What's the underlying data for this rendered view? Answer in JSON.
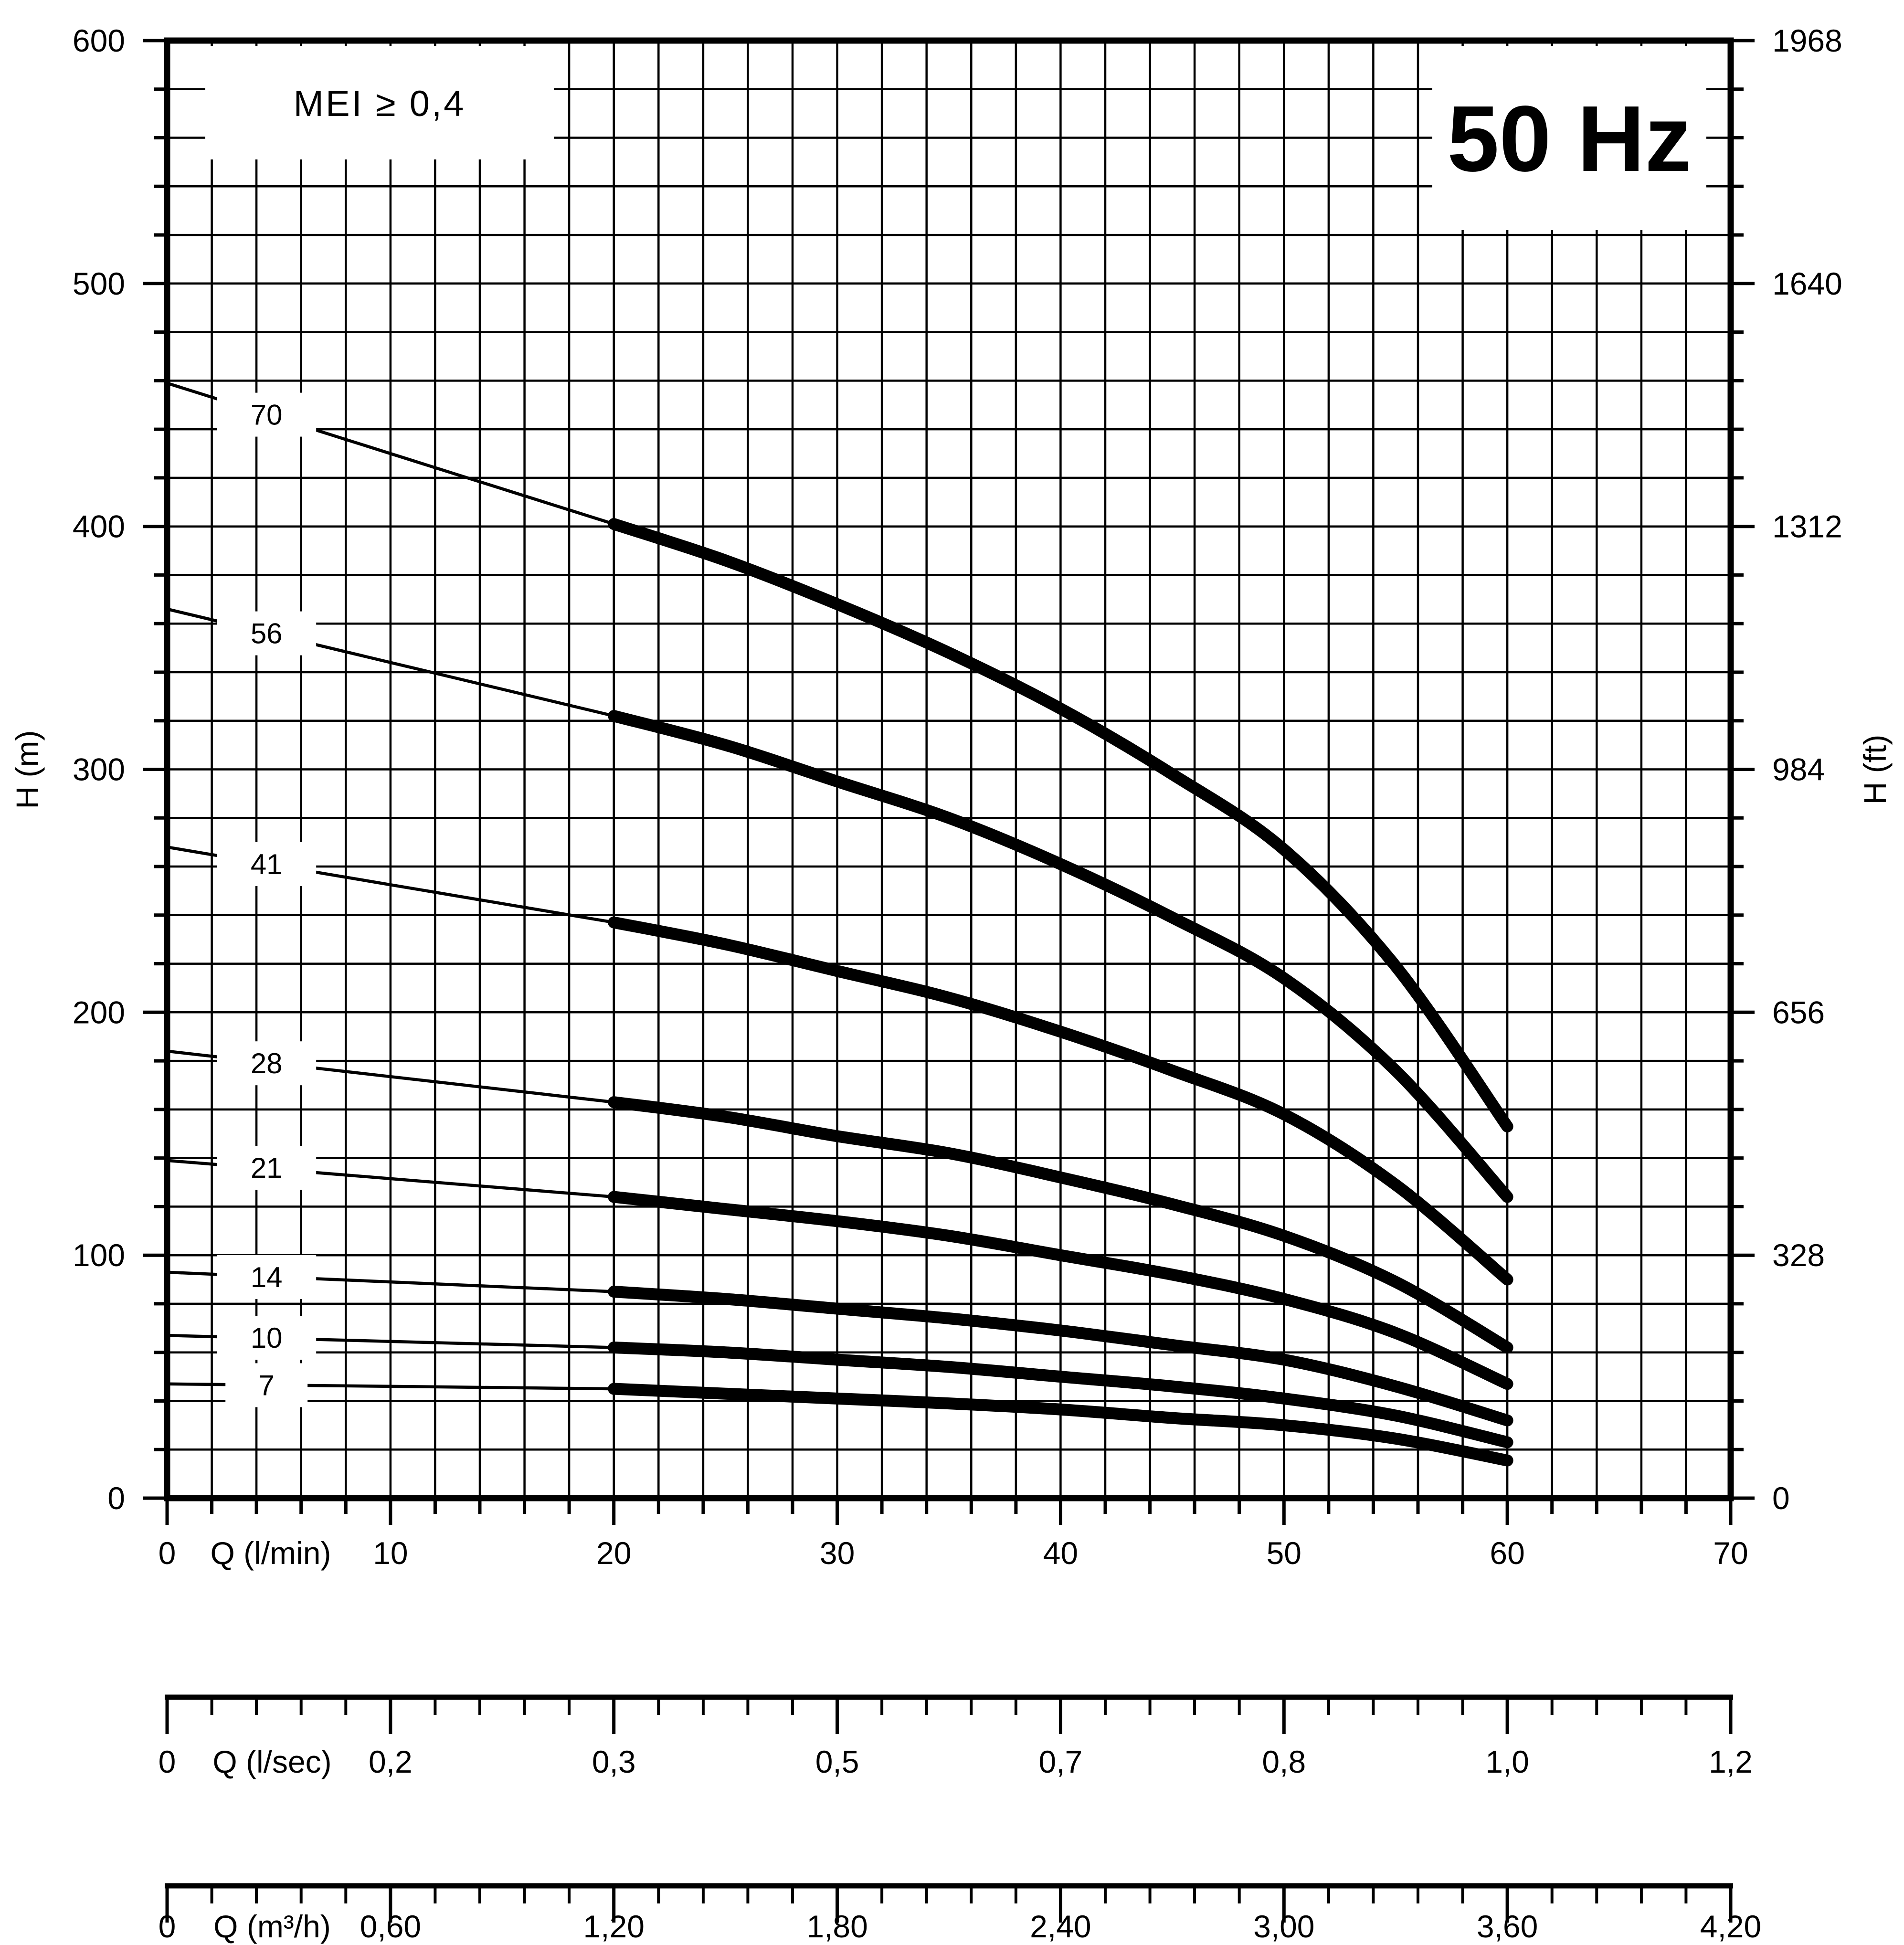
{
  "page": {
    "background": "#ffffff",
    "line_color": "#000000"
  },
  "header": {
    "mei_label": "MEI ≥ 0,4",
    "frequency_label": "50 Hz"
  },
  "axis_titles": {
    "left": "H (m)",
    "right": "H (ft)"
  },
  "chart_data": {
    "type": "line",
    "title": "50 Hz",
    "xlabel": "Q (l/min)",
    "ylabel": "H (m)",
    "y2label": "H (ft)",
    "xlim": [
      0,
      70
    ],
    "ylim": [
      0,
      600
    ],
    "grid": {
      "x_step_lmin": 2,
      "y_step_m": 20,
      "grid_on": true
    },
    "x_axis": {
      "unit": "Q (l/min)",
      "tick_step": 2,
      "label_values": [
        0,
        10,
        20,
        30,
        40,
        50,
        60,
        70
      ],
      "labels": [
        "0",
        "10",
        "20",
        "30",
        "40",
        "50",
        "60",
        "70"
      ]
    },
    "y_left": {
      "unit": "H (m)",
      "tick_step": 20,
      "label_values": [
        600,
        500,
        400,
        300,
        200,
        100,
        0
      ],
      "labels": [
        "600",
        "500",
        "400",
        "300",
        "200",
        "100",
        "0"
      ]
    },
    "y_right": {
      "unit": "H (ft)",
      "tick_step": 20,
      "label_values": [
        600,
        500,
        400,
        300,
        200,
        100,
        0
      ],
      "labels": [
        "1968",
        "1640",
        "1312",
        "984",
        "656",
        "328",
        "0"
      ]
    },
    "ruler_lsec": {
      "unit": "Q (l/sec)",
      "labels": [
        "0",
        "0,2",
        "0,3",
        "0,5",
        "0,7",
        "0,8",
        "1,0",
        "1,2"
      ],
      "positions_lmin": [
        0,
        10,
        20,
        30,
        40,
        50,
        60,
        70
      ],
      "minor_step_lmin": 2
    },
    "ruler_m3h": {
      "unit": "Q (m³/h)",
      "labels": [
        "0",
        "0,60",
        "1,20",
        "1,80",
        "2,40",
        "3,00",
        "3,60",
        "4,20"
      ],
      "positions_lmin": [
        0,
        10,
        20,
        30,
        40,
        50,
        60,
        70
      ],
      "minor_step_lmin": 2
    },
    "series": [
      {
        "name": "70",
        "label_h": 446,
        "thin": [
          [
            0,
            459
          ],
          [
            20,
            401
          ]
        ],
        "thick": [
          [
            20,
            401
          ],
          [
            25,
            386
          ],
          [
            30,
            368
          ],
          [
            35,
            348
          ],
          [
            40,
            325
          ],
          [
            45,
            298
          ],
          [
            50,
            267
          ],
          [
            55,
            219
          ],
          [
            60,
            153
          ]
        ]
      },
      {
        "name": "56",
        "label_h": 356,
        "thin": [
          [
            0,
            366
          ],
          [
            20,
            322
          ]
        ],
        "thick": [
          [
            20,
            322
          ],
          [
            25,
            310
          ],
          [
            30,
            295
          ],
          [
            35,
            280
          ],
          [
            40,
            261
          ],
          [
            45,
            239
          ],
          [
            50,
            214
          ],
          [
            55,
            176
          ],
          [
            60,
            124
          ]
        ]
      },
      {
        "name": "41",
        "label_h": 261,
        "thin": [
          [
            0,
            268
          ],
          [
            20,
            237
          ]
        ],
        "thick": [
          [
            20,
            237
          ],
          [
            25,
            228
          ],
          [
            30,
            217
          ],
          [
            35,
            206
          ],
          [
            40,
            192
          ],
          [
            45,
            176
          ],
          [
            50,
            158
          ],
          [
            55,
            129
          ],
          [
            60,
            90
          ]
        ]
      },
      {
        "name": "28",
        "label_h": 179,
        "thin": [
          [
            0,
            184
          ],
          [
            20,
            163
          ]
        ],
        "thick": [
          [
            20,
            163
          ],
          [
            25,
            157
          ],
          [
            30,
            149
          ],
          [
            35,
            142
          ],
          [
            40,
            132
          ],
          [
            45,
            121
          ],
          [
            50,
            108
          ],
          [
            55,
            89
          ],
          [
            60,
            62
          ]
        ]
      },
      {
        "name": "21",
        "label_h": 136,
        "thin": [
          [
            0,
            139
          ],
          [
            20,
            124
          ]
        ],
        "thick": [
          [
            20,
            124
          ],
          [
            25,
            119
          ],
          [
            30,
            114
          ],
          [
            35,
            108
          ],
          [
            40,
            100
          ],
          [
            45,
            92
          ],
          [
            50,
            82
          ],
          [
            55,
            68
          ],
          [
            60,
            47
          ]
        ]
      },
      {
        "name": "14",
        "label_h": 91,
        "thin": [
          [
            0,
            93
          ],
          [
            20,
            85
          ]
        ],
        "thick": [
          [
            20,
            85
          ],
          [
            25,
            82
          ],
          [
            30,
            78
          ],
          [
            35,
            74
          ],
          [
            40,
            69
          ],
          [
            45,
            63
          ],
          [
            50,
            57
          ],
          [
            55,
            46
          ],
          [
            60,
            32
          ]
        ]
      },
      {
        "name": "10",
        "label_h": 66,
        "thin": [
          [
            0,
            67
          ],
          [
            20,
            62
          ]
        ],
        "thick": [
          [
            20,
            62
          ],
          [
            25,
            60
          ],
          [
            30,
            57
          ],
          [
            35,
            54
          ],
          [
            40,
            50
          ],
          [
            45,
            46
          ],
          [
            50,
            41
          ],
          [
            55,
            34
          ],
          [
            60,
            23
          ]
        ]
      },
      {
        "name": "7",
        "label_h": 46.5,
        "thin": [
          [
            0,
            47
          ],
          [
            20,
            45
          ]
        ],
        "thick": [
          [
            20,
            45
          ],
          [
            25,
            43
          ],
          [
            30,
            41
          ],
          [
            35,
            39
          ],
          [
            40,
            36.5
          ],
          [
            45,
            33
          ],
          [
            50,
            30
          ],
          [
            55,
            24.5
          ],
          [
            60,
            15.5
          ]
        ]
      }
    ]
  }
}
